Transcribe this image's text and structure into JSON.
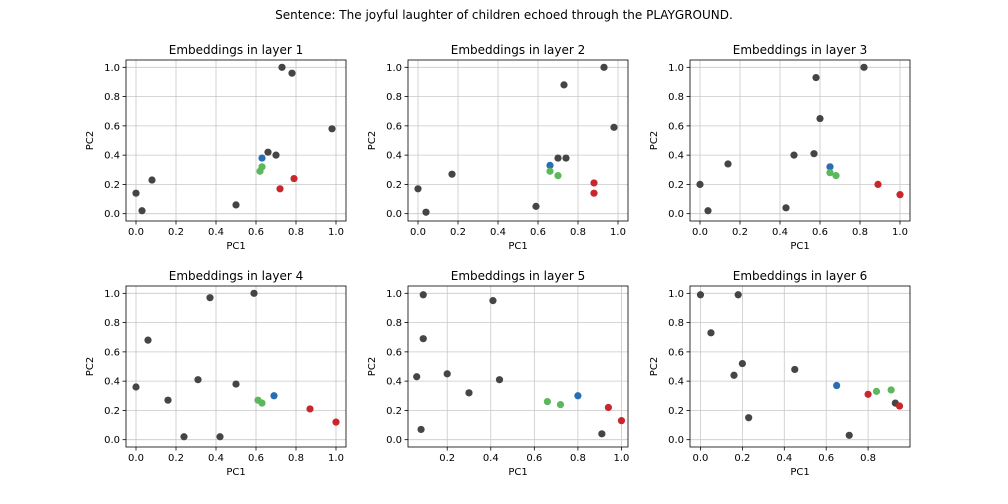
{
  "figure": {
    "suptitle": "Sentence: The joyful laughter of children echoed through the PLAYGROUND."
  },
  "colors": {
    "other": "#454545",
    "blue": "#2a6db5",
    "green": "#5cb85c",
    "red": "#c8282b",
    "grid": "#c8c8c8"
  },
  "chart_data": [
    {
      "type": "scatter",
      "title": "Embeddings in layer 1",
      "xlabel": "PC1",
      "ylabel": "PC2",
      "xlim": [
        -0.05,
        1.05
      ],
      "ylim": [
        -0.05,
        1.05
      ],
      "xticks": [
        "0.0",
        "0.2",
        "0.4",
        "0.6",
        "0.8",
        "1.0"
      ],
      "yticks": [
        "0.0",
        "0.2",
        "0.4",
        "0.6",
        "0.8",
        "1.0"
      ],
      "grid": true,
      "points": [
        {
          "x": 0.0,
          "y": 0.14,
          "c": "other"
        },
        {
          "x": 0.03,
          "y": 0.02,
          "c": "other"
        },
        {
          "x": 0.08,
          "y": 0.23,
          "c": "other"
        },
        {
          "x": 0.5,
          "y": 0.06,
          "c": "other"
        },
        {
          "x": 0.66,
          "y": 0.42,
          "c": "other"
        },
        {
          "x": 0.7,
          "y": 0.4,
          "c": "other"
        },
        {
          "x": 0.73,
          "y": 1.0,
          "c": "other"
        },
        {
          "x": 0.78,
          "y": 0.96,
          "c": "other"
        },
        {
          "x": 0.98,
          "y": 0.58,
          "c": "other"
        },
        {
          "x": 0.63,
          "y": 0.38,
          "c": "blue"
        },
        {
          "x": 0.63,
          "y": 0.32,
          "c": "green"
        },
        {
          "x": 0.62,
          "y": 0.29,
          "c": "green"
        },
        {
          "x": 0.72,
          "y": 0.17,
          "c": "red"
        },
        {
          "x": 0.79,
          "y": 0.24,
          "c": "red"
        }
      ]
    },
    {
      "type": "scatter",
      "title": "Embeddings in layer 2",
      "xlabel": "PC1",
      "ylabel": "PC2",
      "xlim": [
        -0.05,
        1.05
      ],
      "ylim": [
        -0.05,
        1.05
      ],
      "xticks": [
        "0.0",
        "0.2",
        "0.4",
        "0.6",
        "0.8",
        "1.0"
      ],
      "yticks": [
        "0.0",
        "0.2",
        "0.4",
        "0.6",
        "0.8",
        "1.0"
      ],
      "grid": true,
      "points": [
        {
          "x": 0.0,
          "y": 0.17,
          "c": "other"
        },
        {
          "x": 0.04,
          "y": 0.01,
          "c": "other"
        },
        {
          "x": 0.17,
          "y": 0.27,
          "c": "other"
        },
        {
          "x": 0.59,
          "y": 0.05,
          "c": "other"
        },
        {
          "x": 0.7,
          "y": 0.38,
          "c": "other"
        },
        {
          "x": 0.74,
          "y": 0.38,
          "c": "other"
        },
        {
          "x": 0.73,
          "y": 0.88,
          "c": "other"
        },
        {
          "x": 0.93,
          "y": 1.0,
          "c": "other"
        },
        {
          "x": 0.98,
          "y": 0.59,
          "c": "other"
        },
        {
          "x": 0.66,
          "y": 0.33,
          "c": "blue"
        },
        {
          "x": 0.66,
          "y": 0.29,
          "c": "green"
        },
        {
          "x": 0.7,
          "y": 0.26,
          "c": "green"
        },
        {
          "x": 0.88,
          "y": 0.21,
          "c": "red"
        },
        {
          "x": 0.88,
          "y": 0.14,
          "c": "red"
        }
      ]
    },
    {
      "type": "scatter",
      "title": "Embeddings in layer 3",
      "xlabel": "PC1",
      "ylabel": "PC2",
      "xlim": [
        -0.05,
        1.05
      ],
      "ylim": [
        -0.05,
        1.05
      ],
      "xticks": [
        "0.0",
        "0.2",
        "0.4",
        "0.6",
        "0.8",
        "1.0"
      ],
      "yticks": [
        "0.0",
        "0.2",
        "0.4",
        "0.6",
        "0.8",
        "1.0"
      ],
      "grid": true,
      "points": [
        {
          "x": 0.0,
          "y": 0.2,
          "c": "other"
        },
        {
          "x": 0.04,
          "y": 0.02,
          "c": "other"
        },
        {
          "x": 0.14,
          "y": 0.34,
          "c": "other"
        },
        {
          "x": 0.43,
          "y": 0.04,
          "c": "other"
        },
        {
          "x": 0.47,
          "y": 0.4,
          "c": "other"
        },
        {
          "x": 0.57,
          "y": 0.41,
          "c": "other"
        },
        {
          "x": 0.6,
          "y": 0.65,
          "c": "other"
        },
        {
          "x": 0.58,
          "y": 0.93,
          "c": "other"
        },
        {
          "x": 0.82,
          "y": 1.0,
          "c": "other"
        },
        {
          "x": 0.65,
          "y": 0.32,
          "c": "blue"
        },
        {
          "x": 0.65,
          "y": 0.28,
          "c": "green"
        },
        {
          "x": 0.68,
          "y": 0.26,
          "c": "green"
        },
        {
          "x": 0.89,
          "y": 0.2,
          "c": "red"
        },
        {
          "x": 1.0,
          "y": 0.13,
          "c": "red"
        }
      ]
    },
    {
      "type": "scatter",
      "title": "Embeddings in layer 4",
      "xlabel": "PC1",
      "ylabel": "PC2",
      "xlim": [
        -0.05,
        1.05
      ],
      "ylim": [
        -0.05,
        1.05
      ],
      "xticks": [
        "0.0",
        "0.2",
        "0.4",
        "0.6",
        "0.8",
        "1.0"
      ],
      "yticks": [
        "0.0",
        "0.2",
        "0.4",
        "0.6",
        "0.8",
        "1.0"
      ],
      "grid": true,
      "points": [
        {
          "x": 0.0,
          "y": 0.36,
          "c": "other"
        },
        {
          "x": 0.06,
          "y": 0.68,
          "c": "other"
        },
        {
          "x": 0.16,
          "y": 0.27,
          "c": "other"
        },
        {
          "x": 0.24,
          "y": 0.02,
          "c": "other"
        },
        {
          "x": 0.31,
          "y": 0.41,
          "c": "other"
        },
        {
          "x": 0.37,
          "y": 0.97,
          "c": "other"
        },
        {
          "x": 0.42,
          "y": 0.02,
          "c": "other"
        },
        {
          "x": 0.5,
          "y": 0.38,
          "c": "other"
        },
        {
          "x": 0.59,
          "y": 1.0,
          "c": "other"
        },
        {
          "x": 0.69,
          "y": 0.3,
          "c": "blue"
        },
        {
          "x": 0.61,
          "y": 0.27,
          "c": "green"
        },
        {
          "x": 0.63,
          "y": 0.25,
          "c": "green"
        },
        {
          "x": 0.87,
          "y": 0.21,
          "c": "red"
        },
        {
          "x": 1.0,
          "y": 0.12,
          "c": "red"
        }
      ]
    },
    {
      "type": "scatter",
      "title": "Embeddings in layer 5",
      "xlabel": "PC1",
      "ylabel": "PC2",
      "xlim": [
        0.02,
        1.03
      ],
      "ylim": [
        -0.05,
        1.05
      ],
      "xticks": [
        "0.2",
        "0.4",
        "0.6",
        "0.8",
        "1.0"
      ],
      "yticks": [
        "0.0",
        "0.2",
        "0.4",
        "0.6",
        "0.8",
        "1.0"
      ],
      "grid": true,
      "points": [
        {
          "x": 0.06,
          "y": 0.43,
          "c": "other"
        },
        {
          "x": 0.08,
          "y": 0.07,
          "c": "other"
        },
        {
          "x": 0.09,
          "y": 0.99,
          "c": "other"
        },
        {
          "x": 0.09,
          "y": 0.69,
          "c": "other"
        },
        {
          "x": 0.2,
          "y": 0.45,
          "c": "other"
        },
        {
          "x": 0.3,
          "y": 0.32,
          "c": "other"
        },
        {
          "x": 0.41,
          "y": 0.95,
          "c": "other"
        },
        {
          "x": 0.44,
          "y": 0.41,
          "c": "other"
        },
        {
          "x": 0.91,
          "y": 0.04,
          "c": "other"
        },
        {
          "x": 0.8,
          "y": 0.3,
          "c": "blue"
        },
        {
          "x": 0.66,
          "y": 0.26,
          "c": "green"
        },
        {
          "x": 0.72,
          "y": 0.24,
          "c": "green"
        },
        {
          "x": 0.94,
          "y": 0.22,
          "c": "red"
        },
        {
          "x": 1.0,
          "y": 0.13,
          "c": "red"
        }
      ]
    },
    {
      "type": "scatter",
      "title": "Embeddings in layer 6",
      "xlabel": "PC1",
      "ylabel": "PC2",
      "xlim": [
        -0.05,
        1.0
      ],
      "ylim": [
        -0.05,
        1.05
      ],
      "xticks": [
        "0.0",
        "0.2",
        "0.4",
        "0.6",
        "0.8"
      ],
      "yticks": [
        "0.0",
        "0.2",
        "0.4",
        "0.6",
        "0.8",
        "1.0"
      ],
      "grid": true,
      "points": [
        {
          "x": 0.0,
          "y": 0.99,
          "c": "other"
        },
        {
          "x": 0.05,
          "y": 0.73,
          "c": "other"
        },
        {
          "x": 0.16,
          "y": 0.44,
          "c": "other"
        },
        {
          "x": 0.2,
          "y": 0.52,
          "c": "other"
        },
        {
          "x": 0.18,
          "y": 0.99,
          "c": "other"
        },
        {
          "x": 0.23,
          "y": 0.15,
          "c": "other"
        },
        {
          "x": 0.45,
          "y": 0.48,
          "c": "other"
        },
        {
          "x": 0.71,
          "y": 0.03,
          "c": "other"
        },
        {
          "x": 0.93,
          "y": 0.25,
          "c": "other"
        },
        {
          "x": 0.65,
          "y": 0.37,
          "c": "blue"
        },
        {
          "x": 0.84,
          "y": 0.33,
          "c": "green"
        },
        {
          "x": 0.91,
          "y": 0.34,
          "c": "green"
        },
        {
          "x": 0.8,
          "y": 0.31,
          "c": "red"
        },
        {
          "x": 0.95,
          "y": 0.23,
          "c": "red"
        }
      ]
    }
  ]
}
